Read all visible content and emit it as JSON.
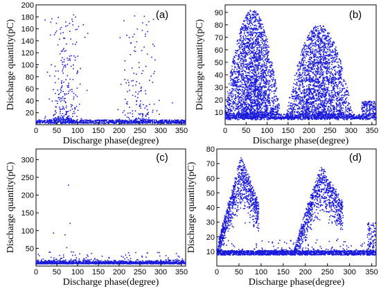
{
  "colors": {
    "points": "#1a1adc",
    "axes": "#000000"
  },
  "chart_data": [
    {
      "type": "scatter",
      "panel_label": "(a)",
      "title": "",
      "xlabel": "Discharge phase(degree)",
      "ylabel": "Discharge quantity(pC)",
      "xlim": [
        0,
        360
      ],
      "ylim": [
        0,
        200
      ],
      "xticks": [
        0,
        50,
        100,
        150,
        200,
        250,
        300,
        350
      ],
      "yticks": [
        20,
        40,
        60,
        80,
        100,
        120,
        140,
        160,
        180,
        200
      ],
      "grid": false,
      "clusters": [
        {
          "phase_range": [
            40,
            110
          ],
          "peak_phase": 70,
          "quantity_range": [
            2,
            190
          ]
        },
        {
          "phase_range": [
            200,
            290
          ],
          "peak_phase": 250,
          "quantity_range": [
            2,
            165
          ]
        }
      ]
    },
    {
      "type": "scatter",
      "panel_label": "(b)",
      "title": "",
      "xlabel": "Discharge phase(degree)",
      "ylabel": "Discharge quantity(pC)",
      "xlim": [
        0,
        360
      ],
      "ylim": [
        0,
        96
      ],
      "xticks": [
        0,
        50,
        100,
        150,
        200,
        250,
        300,
        350
      ],
      "yticks": [
        10,
        20,
        30,
        40,
        50,
        60,
        70,
        80,
        90
      ],
      "grid": false,
      "clusters": [
        {
          "phase_range": [
            0,
            130
          ],
          "peak_phase": 60,
          "quantity_range": [
            5,
            95
          ]
        },
        {
          "phase_range": [
            160,
            310
          ],
          "peak_phase": 240,
          "quantity_range": [
            5,
            80
          ]
        }
      ]
    },
    {
      "type": "scatter",
      "panel_label": "(c)",
      "title": "",
      "xlabel": "Discharge phase(degree)",
      "ylabel": "Discharge quantity(pC)",
      "xlim": [
        0,
        360
      ],
      "ylim": [
        0,
        330
      ],
      "xticks": [
        0,
        50,
        100,
        150,
        200,
        250,
        300,
        350
      ],
      "yticks": [
        50,
        100,
        150,
        200,
        250,
        300
      ],
      "grid": false,
      "clusters": [
        {
          "phase_range": [
            0,
            360
          ],
          "peak_phase": 180,
          "quantity_range": [
            5,
            20
          ]
        }
      ],
      "outliers": [
        {
          "x": 42,
          "y": 93
        },
        {
          "x": 57,
          "y": 30
        },
        {
          "x": 62,
          "y": 22
        },
        {
          "x": 70,
          "y": 88
        },
        {
          "x": 74,
          "y": 52
        },
        {
          "x": 78,
          "y": 228
        },
        {
          "x": 82,
          "y": 120
        },
        {
          "x": 85,
          "y": 40
        },
        {
          "x": 88,
          "y": 30
        },
        {
          "x": 175,
          "y": 24
        },
        {
          "x": 225,
          "y": 30
        },
        {
          "x": 240,
          "y": 38
        },
        {
          "x": 255,
          "y": 28
        },
        {
          "x": 265,
          "y": 25
        }
      ]
    },
    {
      "type": "scatter",
      "panel_label": "(d)",
      "title": "",
      "xlabel": "Discharge phase(degree)",
      "ylabel": "Discharge quantity(pC)",
      "xlim": [
        0,
        360
      ],
      "ylim": [
        0,
        80
      ],
      "xticks": [
        0,
        50,
        100,
        150,
        200,
        250,
        300,
        350
      ],
      "yticks": [
        10,
        20,
        30,
        40,
        50,
        60,
        70,
        80
      ],
      "grid": false,
      "clusters": [
        {
          "phase_range": [
            0,
            95
          ],
          "peak_phase": 60,
          "quantity_range": [
            8,
            78
          ]
        },
        {
          "phase_range": [
            175,
            285
          ],
          "peak_phase": 245,
          "quantity_range": [
            8,
            72
          ]
        }
      ]
    }
  ]
}
